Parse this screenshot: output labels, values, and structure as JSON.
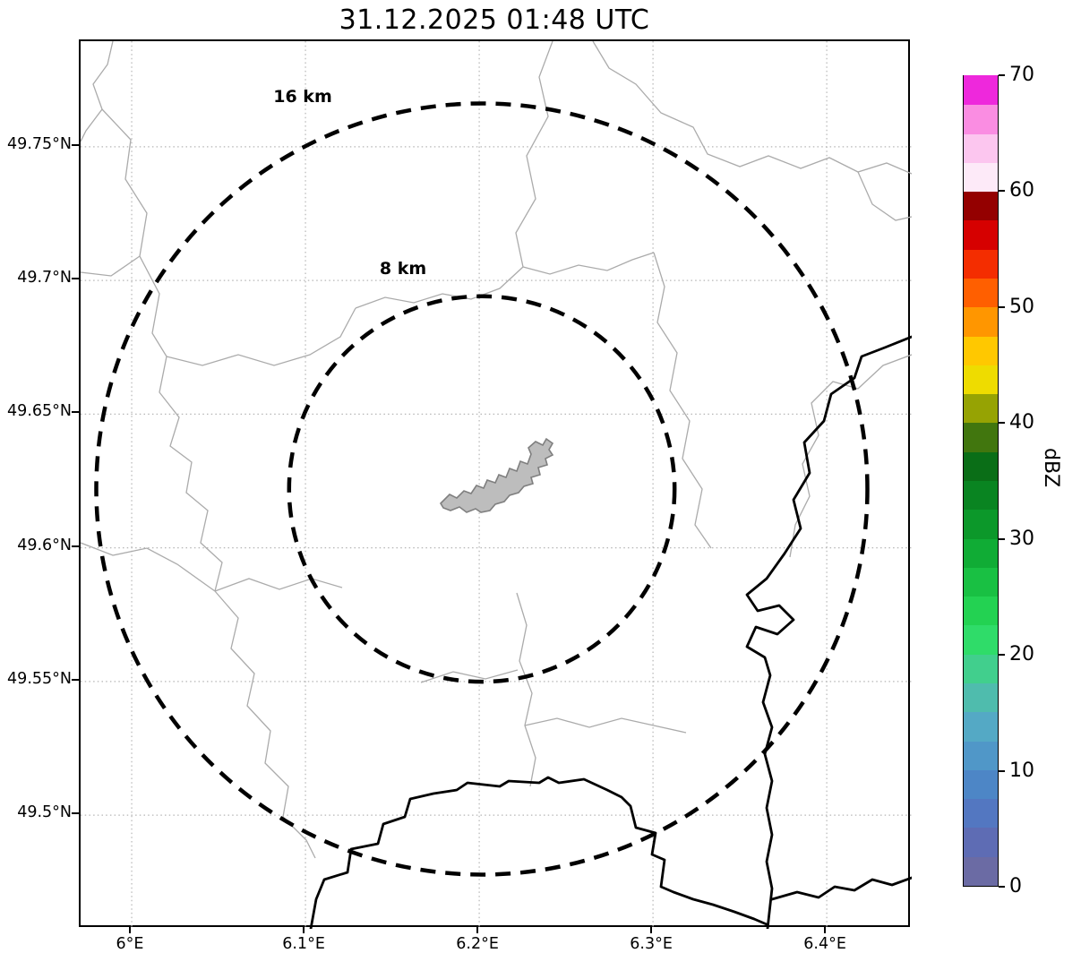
{
  "chart_data": {
    "type": "map",
    "subtype": "radar-range-ring-map",
    "title": "31.12.2025 01:48 UTC",
    "grid": true,
    "precipitation_echoes": "none visible",
    "x_axis": {
      "ticks": [
        {
          "value": 6.0,
          "label": "6°E"
        },
        {
          "value": 6.1,
          "label": "6.1°E"
        },
        {
          "value": 6.2,
          "label": "6.2°E"
        },
        {
          "value": 6.3,
          "label": "6.3°E"
        },
        {
          "value": 6.4,
          "label": "6.4°E"
        }
      ],
      "range": [
        5.9706,
        6.4489
      ]
    },
    "y_axis": {
      "ticks": [
        {
          "value": 49.75,
          "label": "49.75°N"
        },
        {
          "value": 49.7,
          "label": "49.7°N"
        },
        {
          "value": 49.65,
          "label": "49.65°N"
        },
        {
          "value": 49.6,
          "label": "49.6°N"
        },
        {
          "value": 49.55,
          "label": "49.55°N"
        },
        {
          "value": 49.5,
          "label": "49.5°N"
        }
      ],
      "range": [
        49.4575,
        49.7895
      ]
    },
    "rings_center": {
      "lon": 6.2015,
      "lat": 49.622
    },
    "range_rings": [
      {
        "label": "8 km",
        "radius_km": 8
      },
      {
        "label": "16 km",
        "radius_km": 16
      }
    ],
    "colorbar": {
      "label": "dBZ",
      "min": 0,
      "max": 70,
      "ticks": [
        0,
        10,
        20,
        30,
        40,
        50,
        60,
        70
      ],
      "segment_step": 2.5,
      "segment_colors_bottom_to_top": [
        "#6b6ba4",
        "#5e6cb4",
        "#5377c1",
        "#4d86c6",
        "#5097c8",
        "#54a9c5",
        "#4fbcad",
        "#41cf8d",
        "#2fdc69",
        "#23d252",
        "#19c043",
        "#10ac35",
        "#0c982a",
        "#098421",
        "#0a6e17",
        "#41760e",
        "#96a303",
        "#eedc00",
        "#ffc800",
        "#ff9600",
        "#ff5f00",
        "#f42d00",
        "#d60000",
        "#940000",
        "#fdeaf8",
        "#fcc6ef",
        "#fa8de2",
        "#ee28dc"
      ]
    },
    "colors": {
      "background": "#ffffff",
      "grid": "#b5b5b5",
      "admin_boundaries": "#ababab",
      "country_border": "#000000",
      "city_fill": "#bdbdbd",
      "range_ring": "#000000"
    }
  }
}
